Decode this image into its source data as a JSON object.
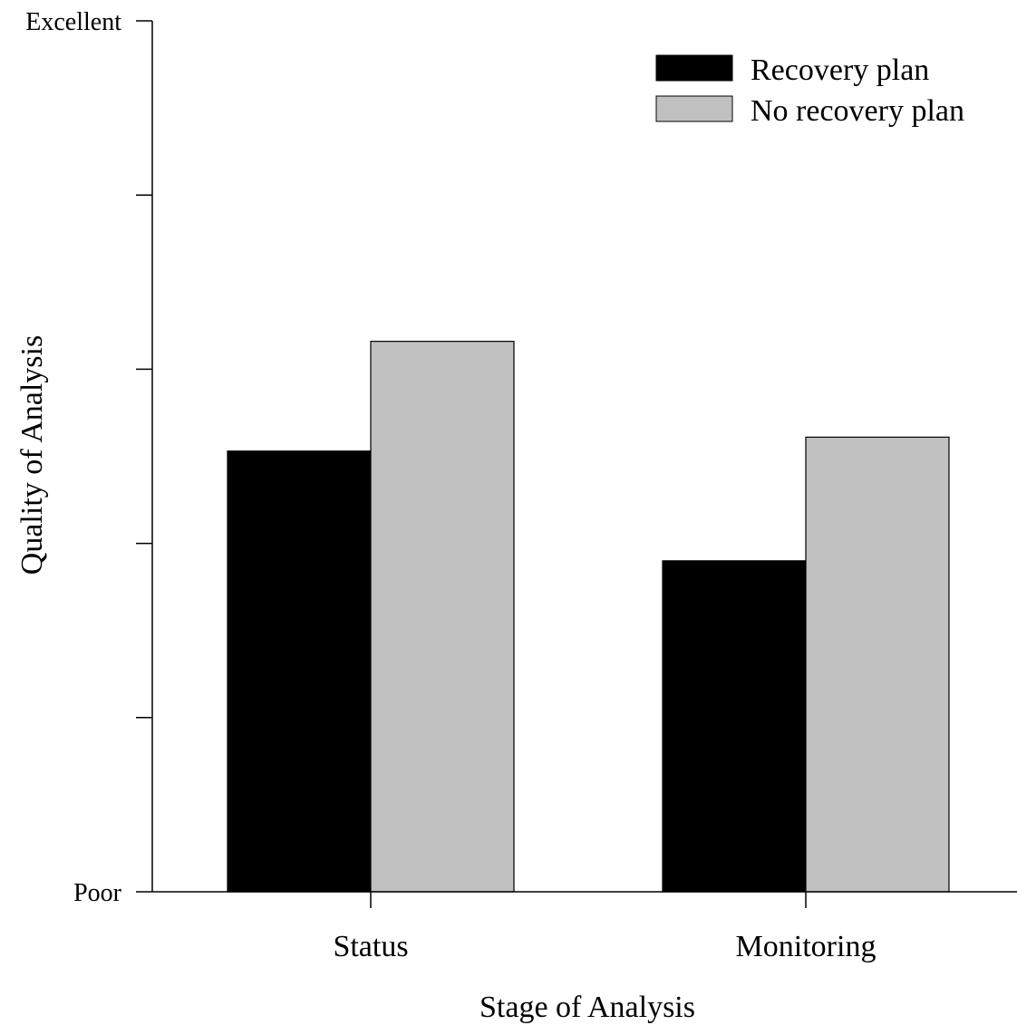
{
  "chart_data": {
    "type": "bar",
    "title": "",
    "xlabel": "Stage of Analysis",
    "ylabel": "Quality of Analysis",
    "categories": [
      "Status",
      "Monitoring"
    ],
    "series": [
      {
        "name": "Recovery plan",
        "values": [
          2.53,
          1.9
        ],
        "color": "#000000"
      },
      {
        "name": "No recovery plan",
        "values": [
          3.16,
          2.61
        ],
        "color": "#c0c0c0"
      }
    ],
    "ylim": [
      0,
      5
    ],
    "y_tick_values": [
      0,
      1,
      2,
      3,
      4,
      5
    ],
    "y_tick_labels": {
      "0": "Poor",
      "5": "Excellent"
    },
    "grid": false,
    "legend_position": "top-right"
  }
}
